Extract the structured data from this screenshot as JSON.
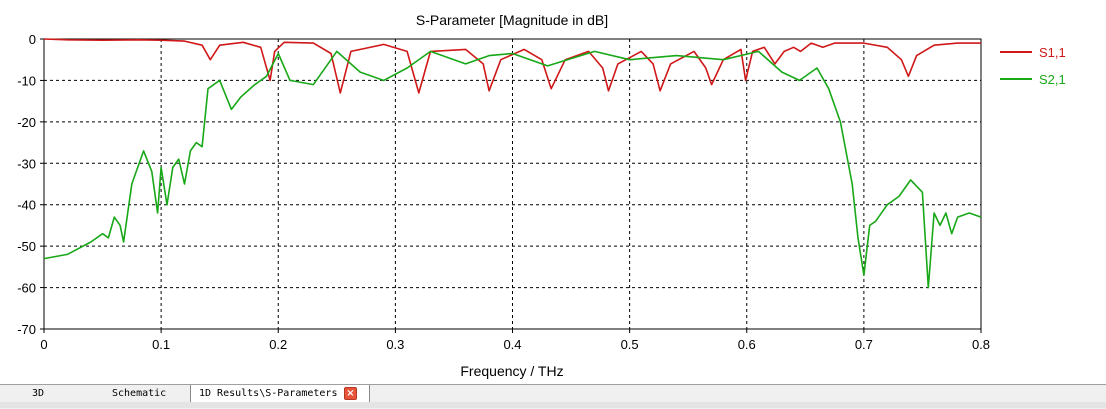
{
  "tabs": [
    {
      "label": "3D"
    },
    {
      "label": "Schematic"
    },
    {
      "label": "1D Results\\S-Parameters",
      "active": true
    }
  ],
  "icons": {
    "tab_close": "close-icon"
  },
  "colors": {
    "s11": "#d01818",
    "s21": "#18a818",
    "grid": "#000000"
  },
  "chart_data": {
    "type": "line",
    "title": "S-Parameter [Magnitude in dB]",
    "xlabel": "Frequency / THz",
    "ylabel": "",
    "xlim": [
      0,
      0.8
    ],
    "ylim": [
      -70,
      0
    ],
    "xticks": [
      "0",
      "0.1",
      "0.2",
      "0.3",
      "0.4",
      "0.5",
      "0.6",
      "0.7",
      "0.8"
    ],
    "yticks": [
      "0",
      "-10",
      "-20",
      "-30",
      "-40",
      "-50",
      "-60",
      "-70"
    ],
    "grid": true,
    "legend_position": "right",
    "series": [
      {
        "name": "S1,1",
        "color": "#d01818",
        "x": [
          0,
          0.02,
          0.05,
          0.08,
          0.1,
          0.12,
          0.135,
          0.142,
          0.15,
          0.17,
          0.185,
          0.193,
          0.197,
          0.205,
          0.23,
          0.245,
          0.253,
          0.262,
          0.29,
          0.31,
          0.32,
          0.33,
          0.36,
          0.375,
          0.38,
          0.39,
          0.41,
          0.425,
          0.433,
          0.445,
          0.465,
          0.477,
          0.482,
          0.49,
          0.51,
          0.52,
          0.526,
          0.535,
          0.555,
          0.565,
          0.57,
          0.58,
          0.595,
          0.599,
          0.605,
          0.615,
          0.624,
          0.632,
          0.64,
          0.646,
          0.655,
          0.665,
          0.675,
          0.685,
          0.7,
          0.72,
          0.732,
          0.738,
          0.745,
          0.76,
          0.78,
          0.8
        ],
        "y": [
          0,
          -0.2,
          -0.3,
          -0.2,
          -0.3,
          -0.5,
          -1.5,
          -5,
          -1.5,
          -0.8,
          -2,
          -10,
          -3,
          -0.8,
          -1,
          -3.5,
          -13,
          -3,
          -1.3,
          -3,
          -13,
          -3,
          -2.5,
          -6,
          -12.5,
          -5,
          -2.5,
          -5,
          -12,
          -5,
          -3,
          -7,
          -12.5,
          -6,
          -3,
          -6,
          -12.5,
          -6,
          -3,
          -7,
          -11,
          -5,
          -2.5,
          -10,
          -3,
          -2,
          -6,
          -3,
          -2,
          -3,
          -1,
          -2,
          -1,
          -1,
          -1,
          -2,
          -5,
          -9,
          -4,
          -1.5,
          -1,
          -1
        ]
      },
      {
        "name": "S2,1",
        "color": "#18a818",
        "x": [
          0,
          0.02,
          0.04,
          0.05,
          0.055,
          0.06,
          0.065,
          0.068,
          0.075,
          0.085,
          0.092,
          0.097,
          0.1,
          0.105,
          0.11,
          0.115,
          0.12,
          0.125,
          0.13,
          0.135,
          0.14,
          0.15,
          0.16,
          0.168,
          0.18,
          0.19,
          0.2,
          0.21,
          0.23,
          0.25,
          0.27,
          0.29,
          0.31,
          0.33,
          0.36,
          0.38,
          0.4,
          0.43,
          0.47,
          0.5,
          0.54,
          0.58,
          0.61,
          0.63,
          0.645,
          0.66,
          0.67,
          0.68,
          0.69,
          0.695,
          0.7,
          0.705,
          0.71,
          0.72,
          0.73,
          0.74,
          0.75,
          0.755,
          0.76,
          0.765,
          0.77,
          0.775,
          0.78,
          0.79,
          0.8
        ],
        "y": [
          -53,
          -52,
          -49,
          -47,
          -48,
          -43,
          -45,
          -49,
          -35,
          -27,
          -32,
          -42,
          -31,
          -40,
          -31,
          -29,
          -35,
          -27,
          -25,
          -26,
          -12,
          -10,
          -17,
          -14,
          -11,
          -9,
          -3.5,
          -10,
          -11,
          -3,
          -8,
          -10,
          -7,
          -3,
          -6,
          -4,
          -3.5,
          -6.5,
          -3,
          -5,
          -4,
          -5,
          -3,
          -8,
          -10,
          -7,
          -12,
          -20,
          -35,
          -48,
          -57,
          -45,
          -44,
          -40,
          -38,
          -34,
          -37,
          -60,
          -42,
          -45,
          -42,
          -47,
          -43,
          -42,
          -43
        ]
      }
    ]
  }
}
